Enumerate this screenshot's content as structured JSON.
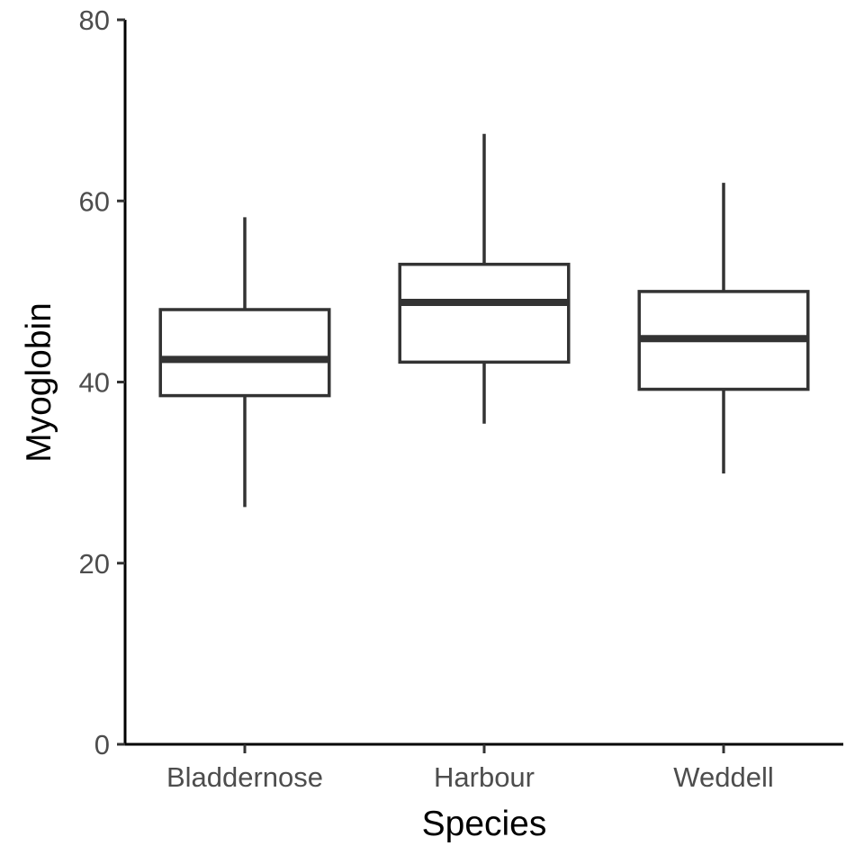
{
  "chart_data": {
    "type": "boxplot",
    "xlabel": "Species",
    "ylabel": "Myoglobin",
    "ylim": [
      0,
      80
    ],
    "yticks": [
      0,
      20,
      40,
      60,
      80
    ],
    "categories": [
      "Bladdernose",
      "Harbour",
      "Weddell"
    ],
    "boxes": [
      {
        "category": "Bladdernose",
        "whisker_low": 26.2,
        "q1": 38.5,
        "median": 42.5,
        "q3": 48.0,
        "whisker_high": 58.2
      },
      {
        "category": "Harbour",
        "whisker_low": 35.4,
        "q1": 42.2,
        "median": 48.8,
        "q3": 53.0,
        "whisker_high": 67.4
      },
      {
        "category": "Weddell",
        "whisker_low": 29.9,
        "q1": 39.2,
        "median": 44.8,
        "q3": 50.0,
        "whisker_high": 62.0
      }
    ],
    "grid": false,
    "legend": "none"
  }
}
